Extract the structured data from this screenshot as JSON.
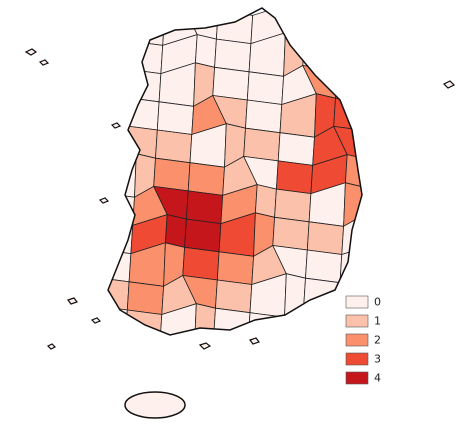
{
  "legend": {
    "classes": [
      {
        "label": "0",
        "color": "#fef0ec"
      },
      {
        "label": "1",
        "color": "#fcc1ab"
      },
      {
        "label": "2",
        "color": "#fb906d"
      },
      {
        "label": "3",
        "color": "#ef4a33"
      },
      {
        "label": "4",
        "color": "#c5161c"
      }
    ]
  },
  "regions": {
    "values": [
      0,
      0,
      0,
      0,
      0,
      0,
      0,
      0,
      0,
      0,
      0,
      0,
      0,
      0,
      0,
      1,
      0,
      0,
      0,
      0,
      0,
      1,
      0,
      0,
      0,
      2,
      0,
      0,
      0,
      0,
      2,
      1,
      0,
      1,
      3,
      3,
      0,
      1,
      1,
      0,
      1,
      1,
      0,
      3,
      3,
      0,
      1,
      2,
      2,
      1,
      0,
      3,
      3,
      2,
      0,
      2,
      4,
      4,
      2,
      1,
      1,
      0,
      2,
      0,
      3,
      4,
      4,
      3,
      2,
      1,
      1,
      0,
      0,
      2,
      2,
      3,
      2,
      1,
      0,
      0,
      0,
      1,
      2,
      1,
      2,
      1,
      0,
      0,
      0,
      0,
      0,
      1,
      0,
      1,
      0,
      0,
      0,
      0,
      0
    ]
  }
}
